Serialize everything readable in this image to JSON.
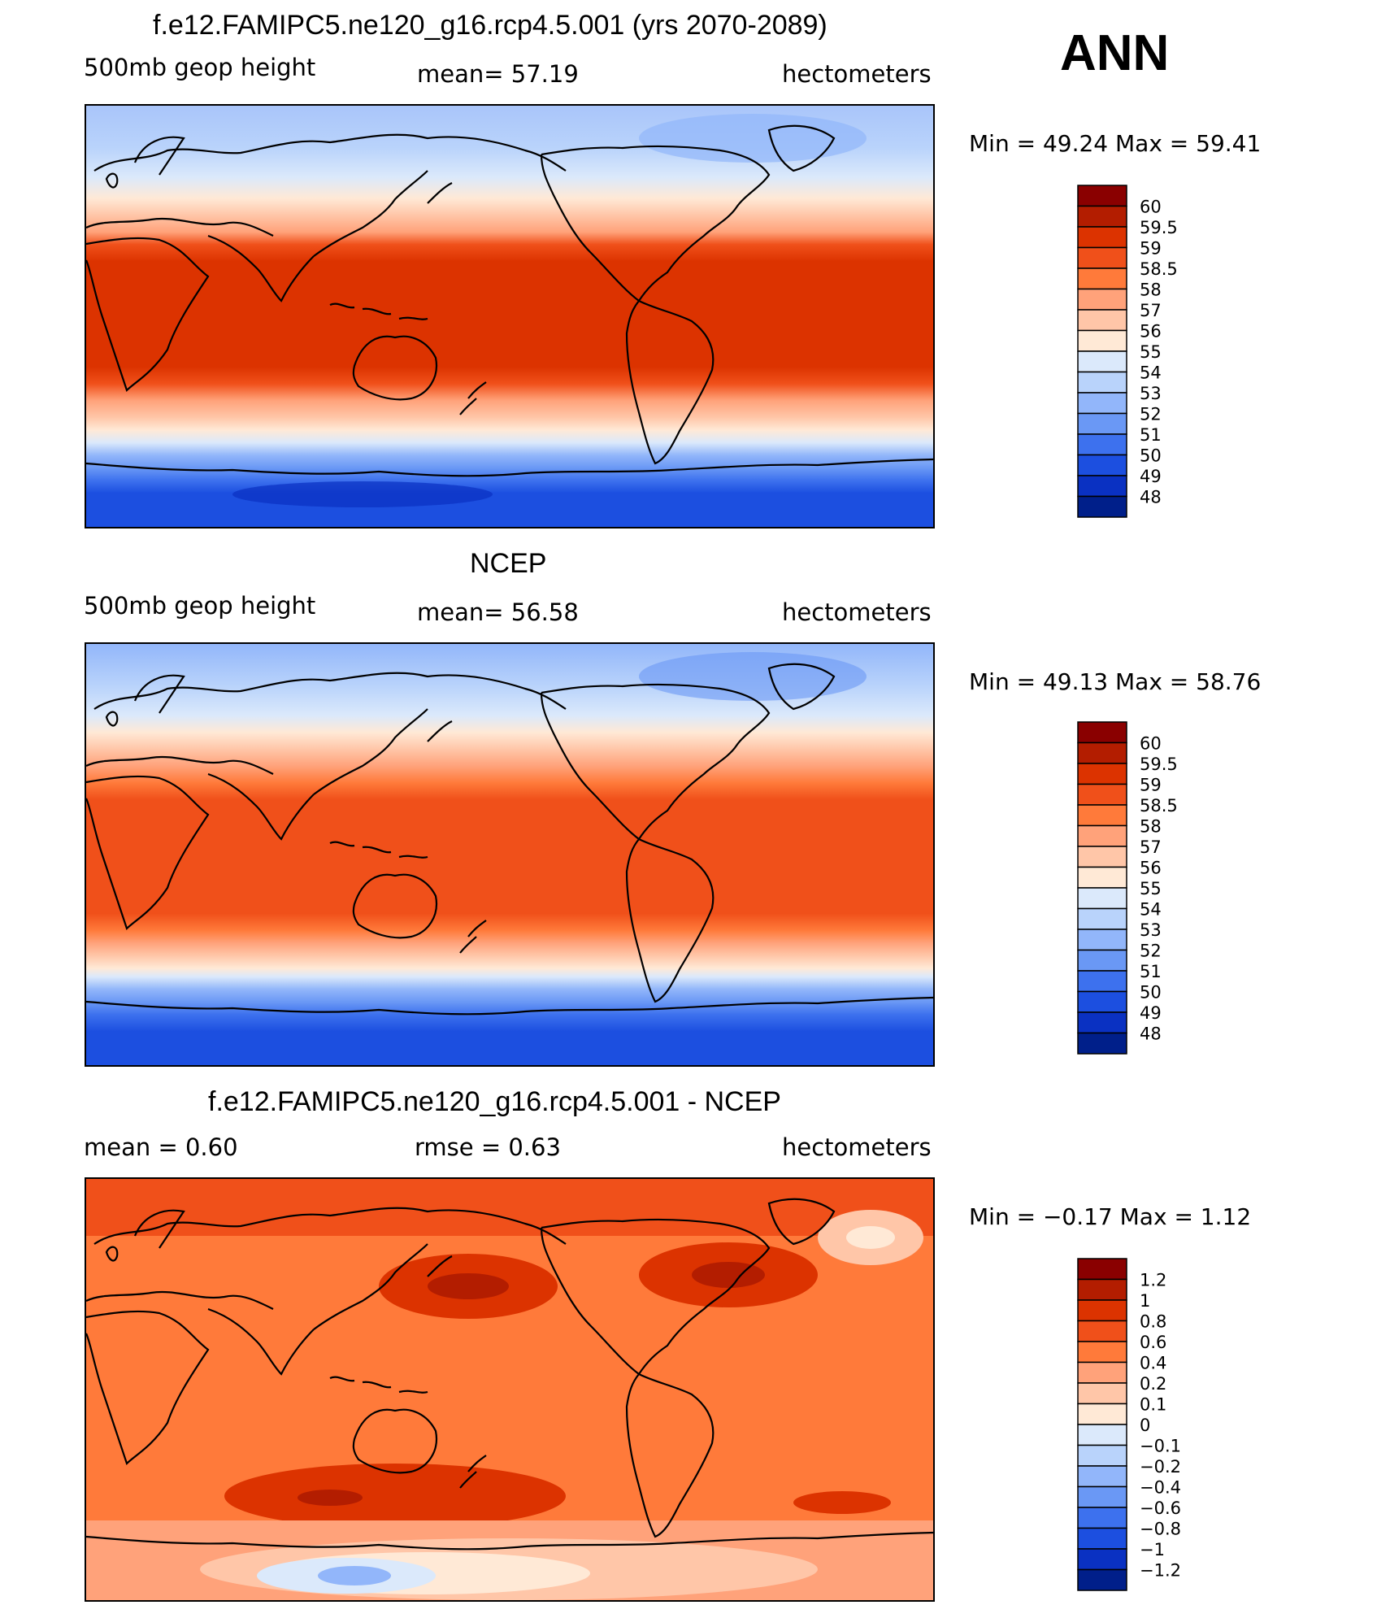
{
  "figure": {
    "season_label": "ANN",
    "panels": [
      {
        "id": "model",
        "title": "f.e12.FAMIPC5.ne120_g16.rcp4.5.001 (yrs 2070-2089)",
        "left_label": "500mb  geop  height",
        "center_label": "mean=   57.19",
        "right_label": "hectometers",
        "minmax": "Min  =    49.24  Max  =    59.41",
        "legend_labels": [
          "60",
          "59.5",
          "59",
          "58.5",
          "58",
          "57",
          "56",
          "55",
          "54",
          "53",
          "52",
          "51",
          "50",
          "49",
          "48"
        ]
      },
      {
        "id": "obs",
        "title": "NCEP",
        "left_label": "500mb  geop  height",
        "center_label": "mean=   56.58",
        "right_label": "hectometers",
        "minmax": "Min  =    49.13  Max  =    58.76",
        "legend_labels": [
          "60",
          "59.5",
          "59",
          "58.5",
          "58",
          "57",
          "56",
          "55",
          "54",
          "53",
          "52",
          "51",
          "50",
          "49",
          "48"
        ]
      },
      {
        "id": "diff",
        "title": "f.e12.FAMIPC5.ne120_g16.rcp4.5.001 - NCEP",
        "left_label": "mean  =     0.60",
        "center_label": "rmse  =     0.63",
        "right_label": "hectometers",
        "minmax": "Min  =    −0.17  Max  =      1.12",
        "legend_labels": [
          "1.2",
          "1",
          "0.8",
          "0.6",
          "0.4",
          "0.2",
          "0.1",
          "0",
          "−0.1",
          "−0.2",
          "−0.4",
          "−0.6",
          "−0.8",
          "−1",
          "−1.2"
        ]
      }
    ]
  },
  "colors": {
    "legend_scale": [
      "#8a0000",
      "#b31d00",
      "#dc3300",
      "#f0501a",
      "#ff7a3a",
      "#ffa27a",
      "#ffc6a8",
      "#ffe9d6",
      "#dbe9fb",
      "#b9d3fb",
      "#92b6fa",
      "#6a98f5",
      "#3d71ee",
      "#1c4fe0",
      "#0a31c2",
      "#001f8a"
    ],
    "ocean_blue": "#1a4bd8",
    "warm_band": "#e63f0f"
  }
}
